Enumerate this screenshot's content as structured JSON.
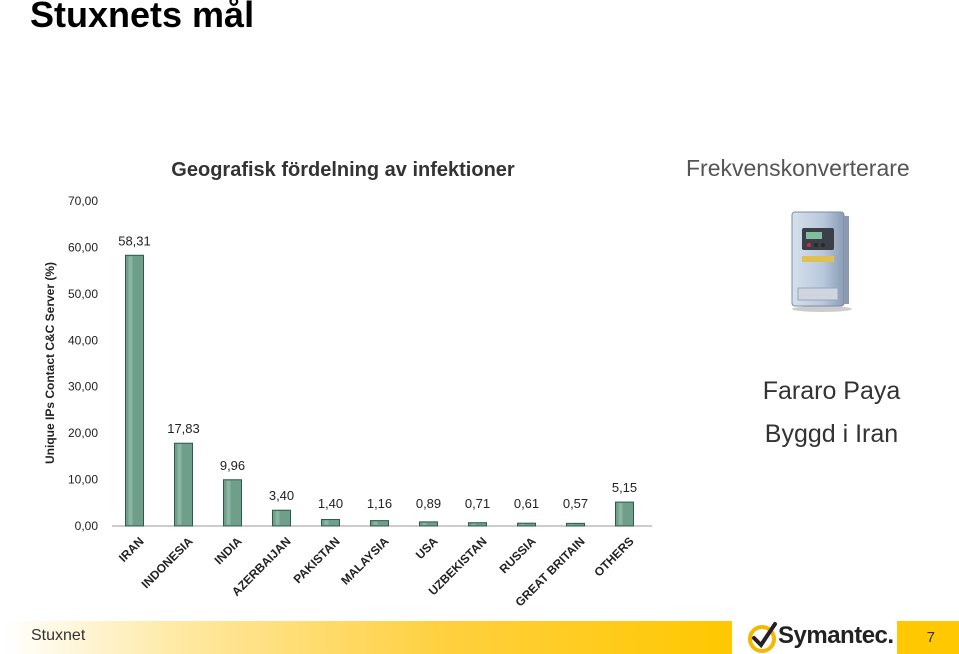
{
  "slide": {
    "title": "Stuxnets mål",
    "footer_left": "Stuxnet",
    "page_number": "7",
    "logo_text": "Symantec."
  },
  "right_panel": {
    "title": "Frekvenskonverterare",
    "image_icon": "frequency-converter-device",
    "lines": [
      "Fararo Paya",
      "Byggd i Iran"
    ]
  },
  "colors": {
    "bar_fill": "#6f9e8a",
    "bar_stroke": "#2f5a4a",
    "footer_gold": "#ffc800",
    "logo_check": "#f5b800"
  },
  "chart_data": {
    "type": "bar",
    "title": "Geografisk fördelning av infektioner",
    "xlabel": "",
    "ylabel": "Unique IPs Contact C&C Server (%)",
    "ylim": [
      0,
      70
    ],
    "yticks": [
      "0,00",
      "10,00",
      "20,00",
      "30,00",
      "40,00",
      "50,00",
      "60,00",
      "70,00"
    ],
    "grid": false,
    "categories": [
      "IRAN",
      "INDONESIA",
      "INDIA",
      "AZERBAIJAN",
      "PAKISTAN",
      "MALAYSIA",
      "USA",
      "UZBEKISTAN",
      "RUSSIA",
      "GREAT BRITAIN",
      "OTHERS"
    ],
    "values": [
      58.31,
      17.83,
      9.96,
      3.4,
      1.4,
      1.16,
      0.89,
      0.71,
      0.61,
      0.57,
      5.15
    ],
    "value_labels": [
      "58,31",
      "17,83",
      "9,96",
      "3,40",
      "1,40",
      "1,16",
      "0,89",
      "0,71",
      "0,61",
      "0,57",
      "5,15"
    ]
  }
}
